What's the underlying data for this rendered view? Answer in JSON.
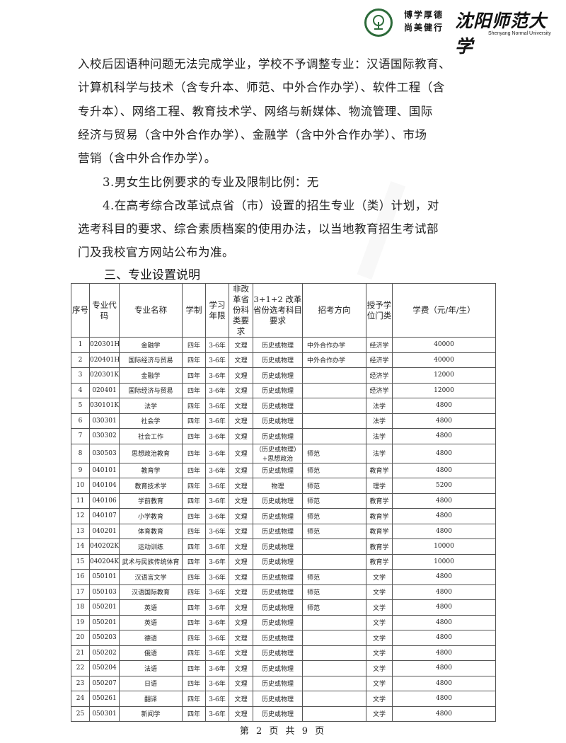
{
  "header": {
    "motto_line1": "博学厚德",
    "motto_line2": "尚美健行",
    "university_name": "沈阳师范大学",
    "university_name_en": "Shenyang Normal University"
  },
  "body": {
    "lines": [
      "入校后因语种问题无法完成学业，学校不予调整专业：汉语国际教育、",
      "计算机科学与技术（含专升本、师范、中外合作办学）、软件工程（含",
      "专升本）、网络工程、教育技术学、网络与新媒体、物流管理、国际",
      "经济与贸易（含中外合作办学）、金融学（含中外合作办学）、市场",
      "营销（含中外合作办学）。",
      "3.男女生比例要求的专业及限制比例：无",
      "4.在高考综合改革试点省（市）设置的招生专业（类）计划，对",
      "选考科目的要求、综合素质档案的使用办法，以当地教育招生考试部",
      "门及我校官方网站公布为准。"
    ],
    "section_heading": "三、专业设置说明"
  },
  "table": {
    "headers": [
      "序号",
      "专业代码",
      "专业名称",
      "学制",
      "学习年限",
      "非改革省份科类要求",
      "3+1+2 改革省份选考科目要求",
      "招考方向",
      "授予学位门类",
      "学费（元/年/生）"
    ],
    "rows": [
      [
        "1",
        "020301H",
        "金融学",
        "四年",
        "3-6年",
        "文理",
        "历史或物理",
        "中外合作办学",
        "经济学",
        "40000"
      ],
      [
        "2",
        "020401H",
        "国际经济与贸易",
        "四年",
        "3-6年",
        "文理",
        "历史或物理",
        "中外合作办学",
        "经济学",
        "40000"
      ],
      [
        "3",
        "020301K",
        "金融学",
        "四年",
        "3-6年",
        "文理",
        "历史或物理",
        "",
        "经济学",
        "12000"
      ],
      [
        "4",
        "020401",
        "国际经济与贸易",
        "四年",
        "3-6年",
        "文理",
        "历史或物理",
        "",
        "经济学",
        "12000"
      ],
      [
        "5",
        "030101K",
        "法学",
        "四年",
        "3-6年",
        "文理",
        "历史或物理",
        "",
        "法学",
        "4800"
      ],
      [
        "6",
        "030301",
        "社会学",
        "四年",
        "3-6年",
        "文理",
        "历史或物理",
        "",
        "法学",
        "4800"
      ],
      [
        "7",
        "030302",
        "社会工作",
        "四年",
        "3-6年",
        "文理",
        "历史或物理",
        "",
        "法学",
        "4800"
      ],
      [
        "8",
        "030503",
        "思想政治教育",
        "四年",
        "3-6年",
        "文理",
        "（历史或物理）+思想政治",
        "师范",
        "法学",
        "4800"
      ],
      [
        "9",
        "040101",
        "教育学",
        "四年",
        "3-6年",
        "文理",
        "历史或物理",
        "师范",
        "教育学",
        "4800"
      ],
      [
        "10",
        "040104",
        "教育技术学",
        "四年",
        "3-6年",
        "文理",
        "物理",
        "师范",
        "理学",
        "5200"
      ],
      [
        "11",
        "040106",
        "学前教育",
        "四年",
        "3-6年",
        "文理",
        "历史或物理",
        "师范",
        "教育学",
        "4800"
      ],
      [
        "12",
        "040107",
        "小学教育",
        "四年",
        "3-6年",
        "文理",
        "历史或物理",
        "师范",
        "教育学",
        "4800"
      ],
      [
        "13",
        "040201",
        "体育教育",
        "四年",
        "3-6年",
        "文理",
        "历史或物理",
        "师范",
        "教育学",
        "4800"
      ],
      [
        "14",
        "040202K",
        "运动训练",
        "四年",
        "3-6年",
        "文理",
        "历史或物理",
        "",
        "教育学",
        "10000"
      ],
      [
        "15",
        "040204K",
        "武术与民族传统体育",
        "四年",
        "3-6年",
        "文理",
        "历史或物理",
        "",
        "教育学",
        "10000"
      ],
      [
        "16",
        "050101",
        "汉语言文学",
        "四年",
        "3-6年",
        "文理",
        "历史或物理",
        "师范",
        "文学",
        "4800"
      ],
      [
        "17",
        "050103",
        "汉语国际教育",
        "四年",
        "3-6年",
        "文理",
        "历史或物理",
        "师范",
        "文学",
        "4800"
      ],
      [
        "18",
        "050201",
        "英语",
        "四年",
        "3-6年",
        "文理",
        "历史或物理",
        "师范",
        "文学",
        "4800"
      ],
      [
        "19",
        "050201",
        "英语",
        "四年",
        "3-6年",
        "文理",
        "历史或物理",
        "",
        "文学",
        "4800"
      ],
      [
        "20",
        "050203",
        "德语",
        "四年",
        "3-6年",
        "文理",
        "历史或物理",
        "",
        "文学",
        "4800"
      ],
      [
        "21",
        "050202",
        "俄语",
        "四年",
        "3-6年",
        "文理",
        "历史或物理",
        "",
        "文学",
        "4800"
      ],
      [
        "22",
        "050204",
        "法语",
        "四年",
        "3-6年",
        "文理",
        "历史或物理",
        "",
        "文学",
        "4800"
      ],
      [
        "23",
        "050207",
        "日语",
        "四年",
        "3-6年",
        "文理",
        "历史或物理",
        "",
        "文学",
        "4800"
      ],
      [
        "24",
        "050261",
        "翻译",
        "四年",
        "3-6年",
        "文理",
        "历史或物理",
        "",
        "文学",
        "4800"
      ],
      [
        "25",
        "050301",
        "新闻学",
        "四年",
        "3-6年",
        "文理",
        "历史或物理",
        "",
        "文学",
        "4800"
      ]
    ]
  },
  "footer": {
    "page_label": "第 2 页 共 9 页"
  },
  "colors": {
    "seal_green": "#2d6b3a"
  }
}
